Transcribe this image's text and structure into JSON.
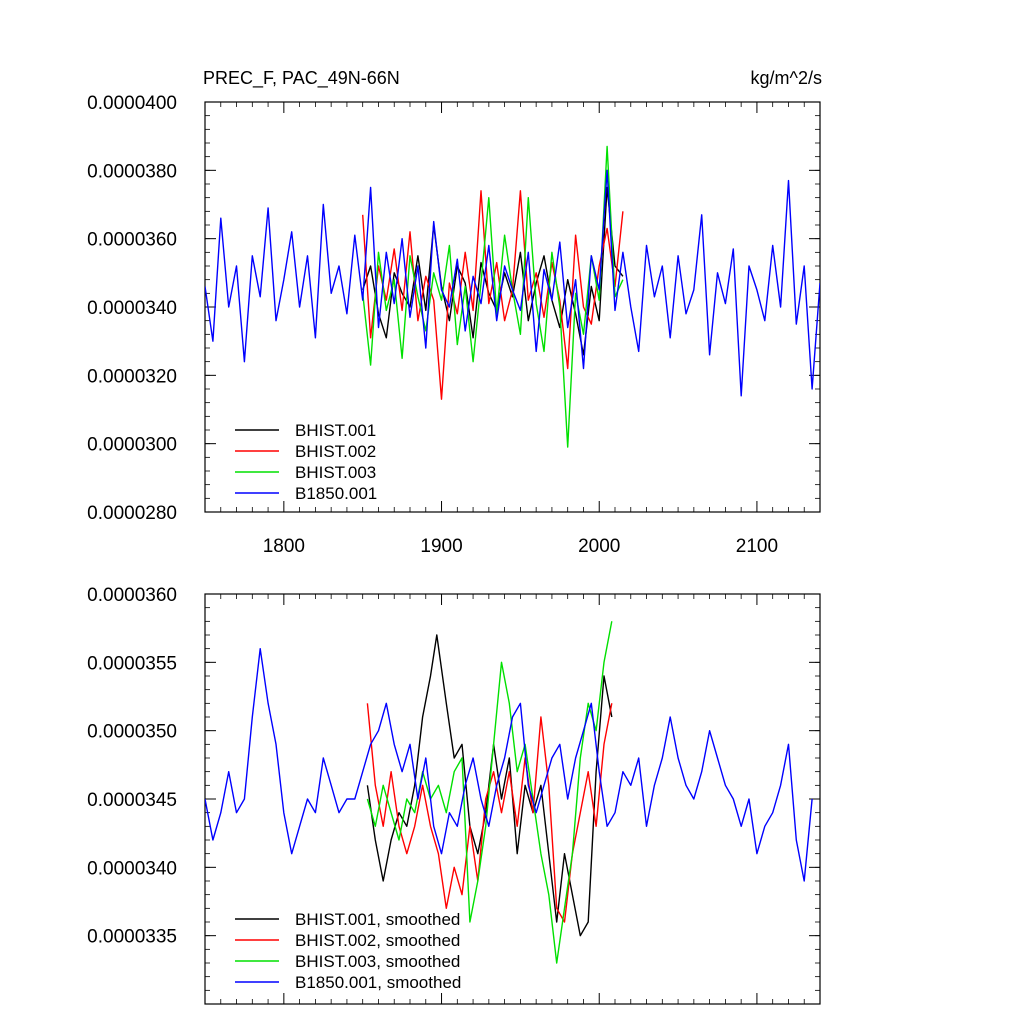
{
  "colors": {
    "black": "#000000",
    "red": "#ff0000",
    "green": "#00e000",
    "blue": "#0000ff"
  },
  "chart_data": [
    {
      "type": "line",
      "title": "PREC_F, PAC_49N-66N",
      "units": "kg/m^2/s",
      "xlim": [
        1750,
        2140
      ],
      "ylim": [
        2.8e-05,
        4e-05
      ],
      "xticks": [
        1800,
        1900,
        2000,
        2100
      ],
      "xtick_labels": [
        "1800",
        "1900",
        "2000",
        "2100"
      ],
      "yticks": [
        2.8e-05,
        3e-05,
        3.2e-05,
        3.4e-05,
        3.6e-05,
        3.8e-05,
        4e-05
      ],
      "ytick_labels": [
        "0.0000280",
        "0.0000300",
        "0.0000320",
        "0.0000340",
        "0.0000360",
        "0.0000380",
        "0.0000400"
      ],
      "legend": "bottom-left",
      "series": [
        {
          "name": "BHIST.001",
          "color": "#000000",
          "x": [
            1850,
            1855,
            1860,
            1865,
            1870,
            1875,
            1880,
            1885,
            1890,
            1895,
            1900,
            1905,
            1910,
            1915,
            1920,
            1925,
            1930,
            1935,
            1940,
            1945,
            1950,
            1955,
            1960,
            1965,
            1970,
            1975,
            1980,
            1985,
            1990,
            1995,
            2000,
            2005,
            2010,
            2015
          ],
          "y": [
            3.45e-05,
            3.52e-05,
            3.38e-05,
            3.31e-05,
            3.5e-05,
            3.44e-05,
            3.4e-05,
            3.55e-05,
            3.39e-05,
            3.64e-05,
            3.46e-05,
            3.36e-05,
            3.52e-05,
            3.47e-05,
            3.31e-05,
            3.53e-05,
            3.44e-05,
            3.39e-05,
            3.5e-05,
            3.43e-05,
            3.56e-05,
            3.36e-05,
            3.47e-05,
            3.55e-05,
            3.42e-05,
            3.34e-05,
            3.48e-05,
            3.38e-05,
            3.26e-05,
            3.46e-05,
            3.36e-05,
            3.75e-05,
            3.52e-05,
            3.49e-05
          ]
        },
        {
          "name": "BHIST.002",
          "color": "#ff0000",
          "x": [
            1850,
            1855,
            1860,
            1865,
            1870,
            1875,
            1880,
            1885,
            1890,
            1895,
            1900,
            1905,
            1910,
            1915,
            1920,
            1925,
            1930,
            1935,
            1940,
            1945,
            1950,
            1955,
            1960,
            1965,
            1970,
            1975,
            1980,
            1985,
            1990,
            1995,
            2000,
            2005,
            2010,
            2015
          ],
          "y": [
            3.67e-05,
            3.31e-05,
            3.52e-05,
            3.42e-05,
            3.57e-05,
            3.39e-05,
            3.62e-05,
            3.36e-05,
            3.49e-05,
            3.42e-05,
            3.13e-05,
            3.47e-05,
            3.38e-05,
            3.56e-05,
            3.39e-05,
            3.74e-05,
            3.41e-05,
            3.53e-05,
            3.36e-05,
            3.45e-05,
            3.74e-05,
            3.42e-05,
            3.5e-05,
            3.37e-05,
            3.53e-05,
            3.42e-05,
            3.22e-05,
            3.61e-05,
            3.4e-05,
            3.35e-05,
            3.52e-05,
            3.63e-05,
            3.46e-05,
            3.68e-05
          ]
        },
        {
          "name": "BHIST.003",
          "color": "#00e000",
          "x": [
            1850,
            1855,
            1860,
            1865,
            1870,
            1875,
            1880,
            1885,
            1890,
            1895,
            1900,
            1905,
            1910,
            1915,
            1920,
            1925,
            1930,
            1935,
            1940,
            1945,
            1950,
            1955,
            1960,
            1965,
            1970,
            1975,
            1980,
            1985,
            1990,
            1995,
            2000,
            2005,
            2010,
            2015
          ],
          "y": [
            3.44e-05,
            3.23e-05,
            3.56e-05,
            3.39e-05,
            3.48e-05,
            3.25e-05,
            3.55e-05,
            3.43e-05,
            3.33e-05,
            3.5e-05,
            3.42e-05,
            3.58e-05,
            3.29e-05,
            3.46e-05,
            3.24e-05,
            3.47e-05,
            3.72e-05,
            3.38e-05,
            3.61e-05,
            3.45e-05,
            3.32e-05,
            3.72e-05,
            3.41e-05,
            3.27e-05,
            3.56e-05,
            3.4e-05,
            2.99e-05,
            3.44e-05,
            3.32e-05,
            3.55e-05,
            3.42e-05,
            3.87e-05,
            3.43e-05,
            3.48e-05
          ]
        },
        {
          "name": "B1850.001",
          "color": "#0000ff",
          "x": [
            1750,
            1755,
            1760,
            1765,
            1770,
            1775,
            1780,
            1785,
            1790,
            1795,
            1800,
            1805,
            1810,
            1815,
            1820,
            1825,
            1830,
            1835,
            1840,
            1845,
            1850,
            1855,
            1860,
            1865,
            1870,
            1875,
            1880,
            1885,
            1890,
            1895,
            1900,
            1905,
            1910,
            1915,
            1920,
            1925,
            1930,
            1935,
            1940,
            1945,
            1950,
            1955,
            1960,
            1965,
            1970,
            1975,
            1980,
            1985,
            1990,
            1995,
            2000,
            2005,
            2010,
            2015,
            2020,
            2025,
            2030,
            2035,
            2040,
            2045,
            2050,
            2055,
            2060,
            2065,
            2070,
            2075,
            2080,
            2085,
            2090,
            2095,
            2100,
            2105,
            2110,
            2115,
            2120,
            2125,
            2130,
            2135,
            2140
          ],
          "y": [
            3.46e-05,
            3.3e-05,
            3.66e-05,
            3.4e-05,
            3.52e-05,
            3.24e-05,
            3.55e-05,
            3.43e-05,
            3.69e-05,
            3.36e-05,
            3.48e-05,
            3.62e-05,
            3.4e-05,
            3.55e-05,
            3.31e-05,
            3.7e-05,
            3.44e-05,
            3.52e-05,
            3.38e-05,
            3.61e-05,
            3.42e-05,
            3.75e-05,
            3.34e-05,
            3.56e-05,
            3.41e-05,
            3.6e-05,
            3.37e-05,
            3.52e-05,
            3.28e-05,
            3.65e-05,
            3.45e-05,
            3.4e-05,
            3.54e-05,
            3.33e-05,
            3.49e-05,
            3.41e-05,
            3.58e-05,
            3.36e-05,
            3.52e-05,
            3.45e-05,
            3.39e-05,
            3.56e-05,
            3.27e-05,
            3.51e-05,
            3.42e-05,
            3.59e-05,
            3.34e-05,
            3.48e-05,
            3.22e-05,
            3.55e-05,
            3.45e-05,
            3.8e-05,
            3.39e-05,
            3.56e-05,
            3.4e-05,
            3.27e-05,
            3.58e-05,
            3.43e-05,
            3.52e-05,
            3.31e-05,
            3.55e-05,
            3.38e-05,
            3.45e-05,
            3.67e-05,
            3.26e-05,
            3.5e-05,
            3.41e-05,
            3.57e-05,
            3.14e-05,
            3.52e-05,
            3.45e-05,
            3.36e-05,
            3.58e-05,
            3.4e-05,
            3.77e-05,
            3.35e-05,
            3.52e-05,
            3.16e-05,
            3.47e-05
          ]
        }
      ]
    },
    {
      "type": "line",
      "xlim": [
        1750,
        2140
      ],
      "ylim": [
        3.3e-05,
        3.6e-05
      ],
      "xticks": [
        1800,
        1900,
        2000,
        2100
      ],
      "yticks": [
        3.35e-05,
        3.4e-05,
        3.45e-05,
        3.5e-05,
        3.55e-05,
        3.6e-05
      ],
      "ytick_labels": [
        "0.0000335",
        "0.0000340",
        "0.0000345",
        "0.0000350",
        "0.0000355",
        "0.0000360"
      ],
      "legend": "bottom-left",
      "series": [
        {
          "name": "BHIST.001, smoothed",
          "color": "#000000",
          "x": [
            1853,
            1858,
            1863,
            1868,
            1873,
            1878,
            1883,
            1888,
            1893,
            1897,
            1903,
            1908,
            1913,
            1918,
            1923,
            1928,
            1933,
            1938,
            1943,
            1948,
            1953,
            1958,
            1963,
            1968,
            1973,
            1978,
            1983,
            1988,
            1993,
            1998,
            2003,
            2008
          ],
          "y": [
            3.46e-05,
            3.42e-05,
            3.39e-05,
            3.42e-05,
            3.44e-05,
            3.43e-05,
            3.46e-05,
            3.51e-05,
            3.54e-05,
            3.57e-05,
            3.52e-05,
            3.48e-05,
            3.49e-05,
            3.43e-05,
            3.41e-05,
            3.44e-05,
            3.49e-05,
            3.45e-05,
            3.48e-05,
            3.41e-05,
            3.46e-05,
            3.44e-05,
            3.46e-05,
            3.41e-05,
            3.36e-05,
            3.41e-05,
            3.38e-05,
            3.35e-05,
            3.36e-05,
            3.47e-05,
            3.54e-05,
            3.51e-05
          ]
        },
        {
          "name": "BHIST.002, smoothed",
          "color": "#ff0000",
          "x": [
            1853,
            1858,
            1863,
            1868,
            1873,
            1878,
            1883,
            1888,
            1893,
            1898,
            1903,
            1908,
            1913,
            1918,
            1923,
            1928,
            1933,
            1938,
            1943,
            1948,
            1953,
            1958,
            1963,
            1968,
            1973,
            1978,
            1983,
            1988,
            1993,
            1998,
            2003,
            2008
          ],
          "y": [
            3.52e-05,
            3.46e-05,
            3.43e-05,
            3.47e-05,
            3.43e-05,
            3.41e-05,
            3.43e-05,
            3.46e-05,
            3.43e-05,
            3.41e-05,
            3.37e-05,
            3.4e-05,
            3.38e-05,
            3.43e-05,
            3.39e-05,
            3.45e-05,
            3.47e-05,
            3.44e-05,
            3.47e-05,
            3.43e-05,
            3.48e-05,
            3.44e-05,
            3.51e-05,
            3.46e-05,
            3.37e-05,
            3.36e-05,
            3.41e-05,
            3.44e-05,
            3.47e-05,
            3.43e-05,
            3.49e-05,
            3.52e-05
          ]
        },
        {
          "name": "BHIST.003, smoothed",
          "color": "#00e000",
          "x": [
            1853,
            1858,
            1863,
            1868,
            1873,
            1878,
            1883,
            1888,
            1893,
            1898,
            1903,
            1908,
            1913,
            1918,
            1923,
            1928,
            1933,
            1938,
            1943,
            1948,
            1953,
            1958,
            1963,
            1968,
            1973,
            1978,
            1983,
            1988,
            1993,
            1998,
            2003,
            2008
          ],
          "y": [
            3.45e-05,
            3.43e-05,
            3.46e-05,
            3.44e-05,
            3.42e-05,
            3.45e-05,
            3.44e-05,
            3.47e-05,
            3.45e-05,
            3.46e-05,
            3.44e-05,
            3.47e-05,
            3.48e-05,
            3.36e-05,
            3.39e-05,
            3.43e-05,
            3.49e-05,
            3.55e-05,
            3.52e-05,
            3.47e-05,
            3.49e-05,
            3.45e-05,
            3.41e-05,
            3.38e-05,
            3.33e-05,
            3.37e-05,
            3.41e-05,
            3.48e-05,
            3.52e-05,
            3.5e-05,
            3.55e-05,
            3.58e-05
          ]
        },
        {
          "name": "B1850.001, smoothed",
          "color": "#0000ff",
          "x": [
            1750,
            1755,
            1760,
            1765,
            1770,
            1775,
            1780,
            1785,
            1790,
            1795,
            1800,
            1805,
            1810,
            1815,
            1820,
            1825,
            1830,
            1835,
            1840,
            1845,
            1850,
            1855,
            1860,
            1865,
            1870,
            1875,
            1880,
            1885,
            1890,
            1895,
            1900,
            1905,
            1910,
            1915,
            1920,
            1925,
            1930,
            1935,
            1940,
            1945,
            1950,
            1955,
            1960,
            1965,
            1970,
            1975,
            1980,
            1985,
            1990,
            1995,
            2000,
            2005,
            2010,
            2015,
            2020,
            2025,
            2030,
            2035,
            2040,
            2045,
            2050,
            2055,
            2060,
            2065,
            2070,
            2075,
            2080,
            2085,
            2090,
            2095,
            2100,
            2105,
            2110,
            2115,
            2120,
            2125,
            2130,
            2135
          ],
          "y": [
            3.45e-05,
            3.42e-05,
            3.44e-05,
            3.47e-05,
            3.44e-05,
            3.45e-05,
            3.51e-05,
            3.56e-05,
            3.52e-05,
            3.49e-05,
            3.44e-05,
            3.41e-05,
            3.43e-05,
            3.45e-05,
            3.44e-05,
            3.48e-05,
            3.46e-05,
            3.44e-05,
            3.45e-05,
            3.45e-05,
            3.47e-05,
            3.49e-05,
            3.5e-05,
            3.52e-05,
            3.49e-05,
            3.47e-05,
            3.49e-05,
            3.45e-05,
            3.48e-05,
            3.43e-05,
            3.41e-05,
            3.44e-05,
            3.43e-05,
            3.46e-05,
            3.48e-05,
            3.45e-05,
            3.43e-05,
            3.46e-05,
            3.48e-05,
            3.51e-05,
            3.52e-05,
            3.46e-05,
            3.44e-05,
            3.46e-05,
            3.48e-05,
            3.49e-05,
            3.45e-05,
            3.48e-05,
            3.5e-05,
            3.52e-05,
            3.47e-05,
            3.43e-05,
            3.44e-05,
            3.47e-05,
            3.46e-05,
            3.48e-05,
            3.43e-05,
            3.46e-05,
            3.48e-05,
            3.51e-05,
            3.48e-05,
            3.46e-05,
            3.45e-05,
            3.47e-05,
            3.5e-05,
            3.48e-05,
            3.46e-05,
            3.45e-05,
            3.43e-05,
            3.45e-05,
            3.41e-05,
            3.43e-05,
            3.44e-05,
            3.46e-05,
            3.49e-05,
            3.42e-05,
            3.39e-05,
            3.45e-05
          ]
        }
      ]
    }
  ]
}
